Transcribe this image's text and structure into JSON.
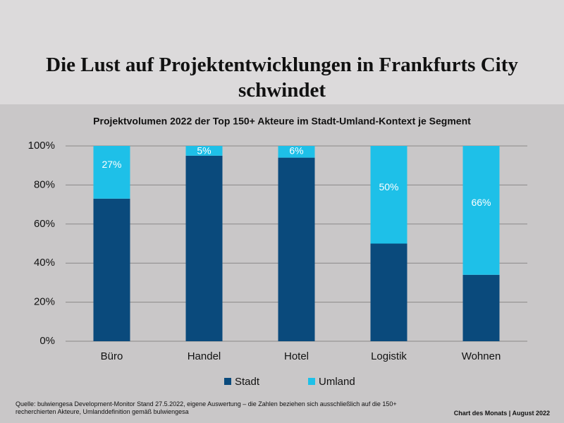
{
  "header": {
    "title": "Die Lust auf Projektentwicklungen in Frankfurts City schwindet"
  },
  "chart_data": {
    "type": "stacked-bar",
    "title": "Projektvolumen 2022 der Top 150+ Akteure im Stadt-Umland-Kontext je Segment",
    "categories": [
      "Büro",
      "Handel",
      "Hotel",
      "Logistik",
      "Wohnen"
    ],
    "series": [
      {
        "name": "Stadt",
        "color": "#0a4a7c",
        "values": [
          73,
          95,
          94,
          50,
          34
        ]
      },
      {
        "name": "Umland",
        "color": "#1ec0e8",
        "values": [
          27,
          5,
          6,
          50,
          66
        ],
        "value_labels": [
          "27%",
          "5%",
          "6%",
          "50%",
          "66%"
        ]
      }
    ],
    "ylim": [
      0,
      100
    ],
    "yticks": [
      {
        "value": 0,
        "label": "0%"
      },
      {
        "value": 20,
        "label": "20%"
      },
      {
        "value": 40,
        "label": "40%"
      },
      {
        "value": 60,
        "label": "60%"
      },
      {
        "value": 80,
        "label": "80%"
      },
      {
        "value": 100,
        "label": "100%"
      }
    ],
    "grid": true,
    "legend": "bottom"
  },
  "footer": {
    "source": "Quelle: bulwiengesa Development-Monitor Stand 27.5.2022, eigene Auswertung – die Zahlen beziehen sich ausschließlich auf die 150+ recherchierten  Akteure, Umlanddefinition gemäß bulwiengesa",
    "credit": "Chart des Monats | August 2022"
  }
}
